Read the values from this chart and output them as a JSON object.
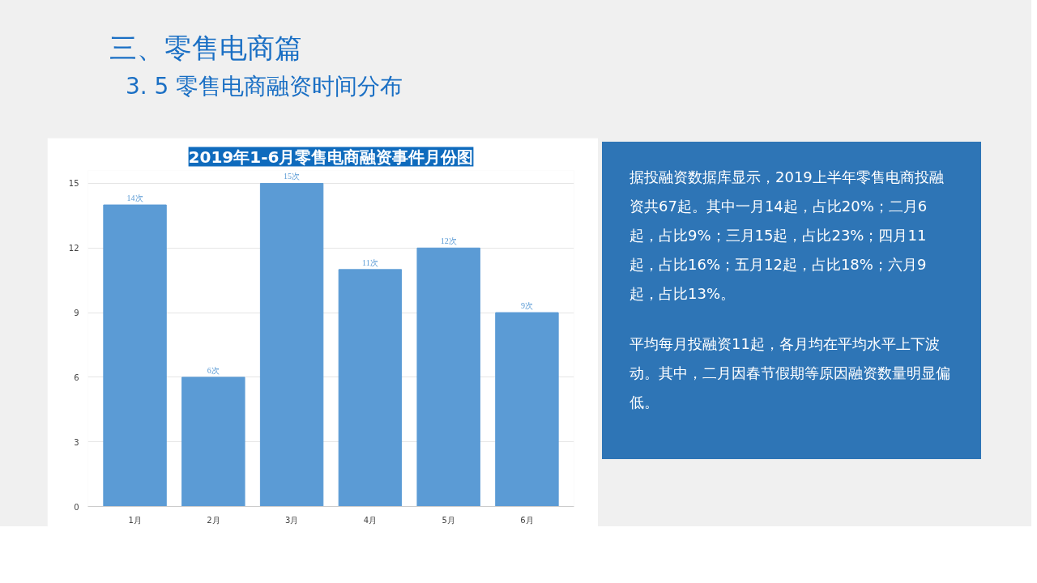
{
  "chart_data": [
    {
      "type": "other",
      "title": "三、零售电商篇",
      "subtitle": "3. 5  零售电商融资时间分布"
    },
    {
      "type": "bar",
      "title": "2019年1-6月零售电商融资事件月份图",
      "categories": [
        "1月",
        "2月",
        "3月",
        "4月",
        "5月",
        "6月"
      ],
      "values": [
        14,
        6,
        15,
        11,
        12,
        9
      ],
      "value_labels": [
        "14次",
        "6次",
        "15次",
        "11次",
        "12次",
        "9次"
      ],
      "color": "#5b9bd5",
      "ylim": [
        0,
        15.6
      ],
      "yticks": [
        0,
        3,
        6,
        9,
        12,
        15
      ],
      "grid": "y"
    },
    {
      "type": "other",
      "annotations": [
        "据投融资数据库显示，2019上半年零售电商投融资共67起。其中一月14起，占比20%；二月6起，占比9%；三月15起，占比23%；四月11起，占比16%；五月12起，占比18%；六月9起，占比13%。",
        "平均每月投融资11起，各月均在平均水平上下波动。其中，二月因春节假期等原因融资数量明显偏低。"
      ]
    }
  ]
}
